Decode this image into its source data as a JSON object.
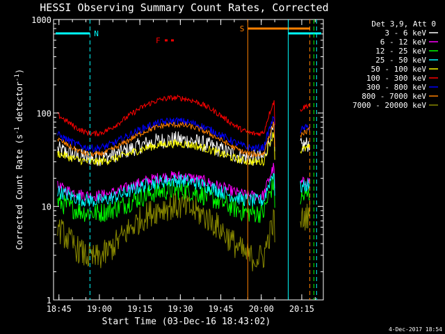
{
  "chart_data": {
    "type": "line",
    "title": "HESSI Observing Summary Count Rates, Corrected",
    "xlabel": "Start Time (03-Dec-16 18:43:02)",
    "ylabel": "Corrected Count Rate (s-1 detector-1)",
    "ylabel_parts": [
      "Corrected Count Rate (s",
      "-1",
      " detector",
      "-1",
      ")"
    ],
    "yscale": "log",
    "ylim": [
      1,
      1000
    ],
    "xlim_minutes": [
      0,
      100
    ],
    "xticks": [
      {
        "label": "18:45",
        "minute": 2
      },
      {
        "label": "19:00",
        "minute": 17
      },
      {
        "label": "19:15",
        "minute": 32
      },
      {
        "label": "19:30",
        "minute": 47
      },
      {
        "label": "19:45",
        "minute": 62
      },
      {
        "label": "20:00",
        "minute": 77
      },
      {
        "label": "20:15",
        "minute": 92
      }
    ],
    "yticks": [
      {
        "label": "1",
        "value": 1
      },
      {
        "label": "10",
        "value": 10
      },
      {
        "label": "100",
        "value": 100
      },
      {
        "label": "1000",
        "value": 1000
      }
    ],
    "legend_title": "Det 3,9, Att 0",
    "legend_position": "right",
    "series": [
      {
        "name": "3 - 6 keV",
        "color": "#ffffff",
        "base": 33,
        "peak": 52,
        "noise": 0.18
      },
      {
        "name": "6 - 12 keV",
        "color": "#ff00ff",
        "base": 13,
        "peak": 21,
        "noise": 0.12
      },
      {
        "name": "12 - 25 keV",
        "color": "#00ff00",
        "base": 8.5,
        "peak": 15,
        "noise": 0.22
      },
      {
        "name": "25 - 50 keV",
        "color": "#00ffff",
        "base": 11.5,
        "peak": 19,
        "noise": 0.15
      },
      {
        "name": "50 - 100 keV",
        "color": "#ffff00",
        "base": 30,
        "peak": 47,
        "noise": 0.09
      },
      {
        "name": "100 - 300 keV",
        "color": "#ff0000",
        "base": 60,
        "peak": 145,
        "noise": 0.06
      },
      {
        "name": "300 - 800 keV",
        "color": "#0000ff",
        "base": 42,
        "peak": 82,
        "noise": 0.08
      },
      {
        "name": "800 - 7000 keV",
        "color": "#ff8000",
        "base": 36,
        "peak": 75,
        "noise": 0.06
      },
      {
        "name": "7000 - 20000 keV",
        "color": "#888800",
        "base": 2.8,
        "peak": 10,
        "noise": 0.3
      }
    ],
    "annotations": [
      {
        "label": "N",
        "color": "#00ffff"
      },
      {
        "label": "S",
        "color": "#ff8000"
      },
      {
        "label": "F",
        "color": "#ff0000"
      }
    ],
    "footer_date": "4-Dec-2017 18:54"
  }
}
